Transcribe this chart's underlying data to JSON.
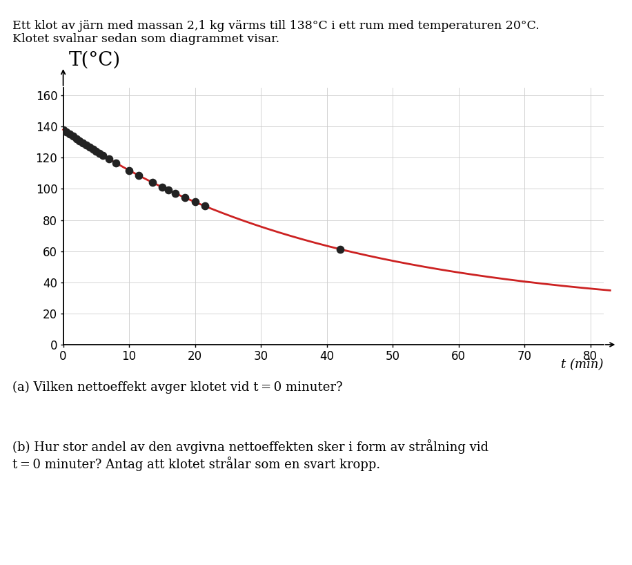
{
  "title_text": "Ett klot av järn med massan 2,1 kg värms till 138°C i ett rum med temperaturen 20°C.\nKlotet svalnar sedan som diagrammet visar.",
  "ylabel": "T(°C)",
  "xlabel": "t (min)",
  "xlim": [
    0,
    82
  ],
  "ylim": [
    0,
    165
  ],
  "xticks": [
    0,
    10,
    20,
    30,
    40,
    50,
    60,
    70,
    80
  ],
  "yticks": [
    0,
    20,
    40,
    60,
    80,
    100,
    120,
    140,
    160
  ],
  "curve_color": "#cc2222",
  "curve_linewidth": 2.0,
  "dot_color": "#222222",
  "dot_size": 55,
  "T0": 138,
  "T_ambient": 20,
  "k": 0.025,
  "scatter_points_t": [
    0,
    0.5,
    1.0,
    1.5,
    2.0,
    2.5,
    3.0,
    3.5,
    4.0,
    4.5,
    5.0,
    5.5,
    6.0,
    7.0,
    8.0,
    10.0,
    11.5,
    13.5,
    15.0,
    16.0,
    17.0,
    18.5,
    20.0,
    21.5,
    42.0
  ],
  "background_color": "#ffffff",
  "grid_color": "#cccccc",
  "grid_linewidth": 0.6,
  "question_a": "(a) Vilken nettoeffekt avger klotet vid t = 0 minuter?",
  "question_b": "(b) Hur stor andel av den avgivna nettoeffekten sker i form av strålning vid\nt = 0 minuter? Antag att klotet strålar som en svart kropp.",
  "font_size_title": 12.5,
  "font_size_axis_label": 13,
  "font_size_tick": 12,
  "font_size_question": 13,
  "font_size_ylabel_big": 20
}
